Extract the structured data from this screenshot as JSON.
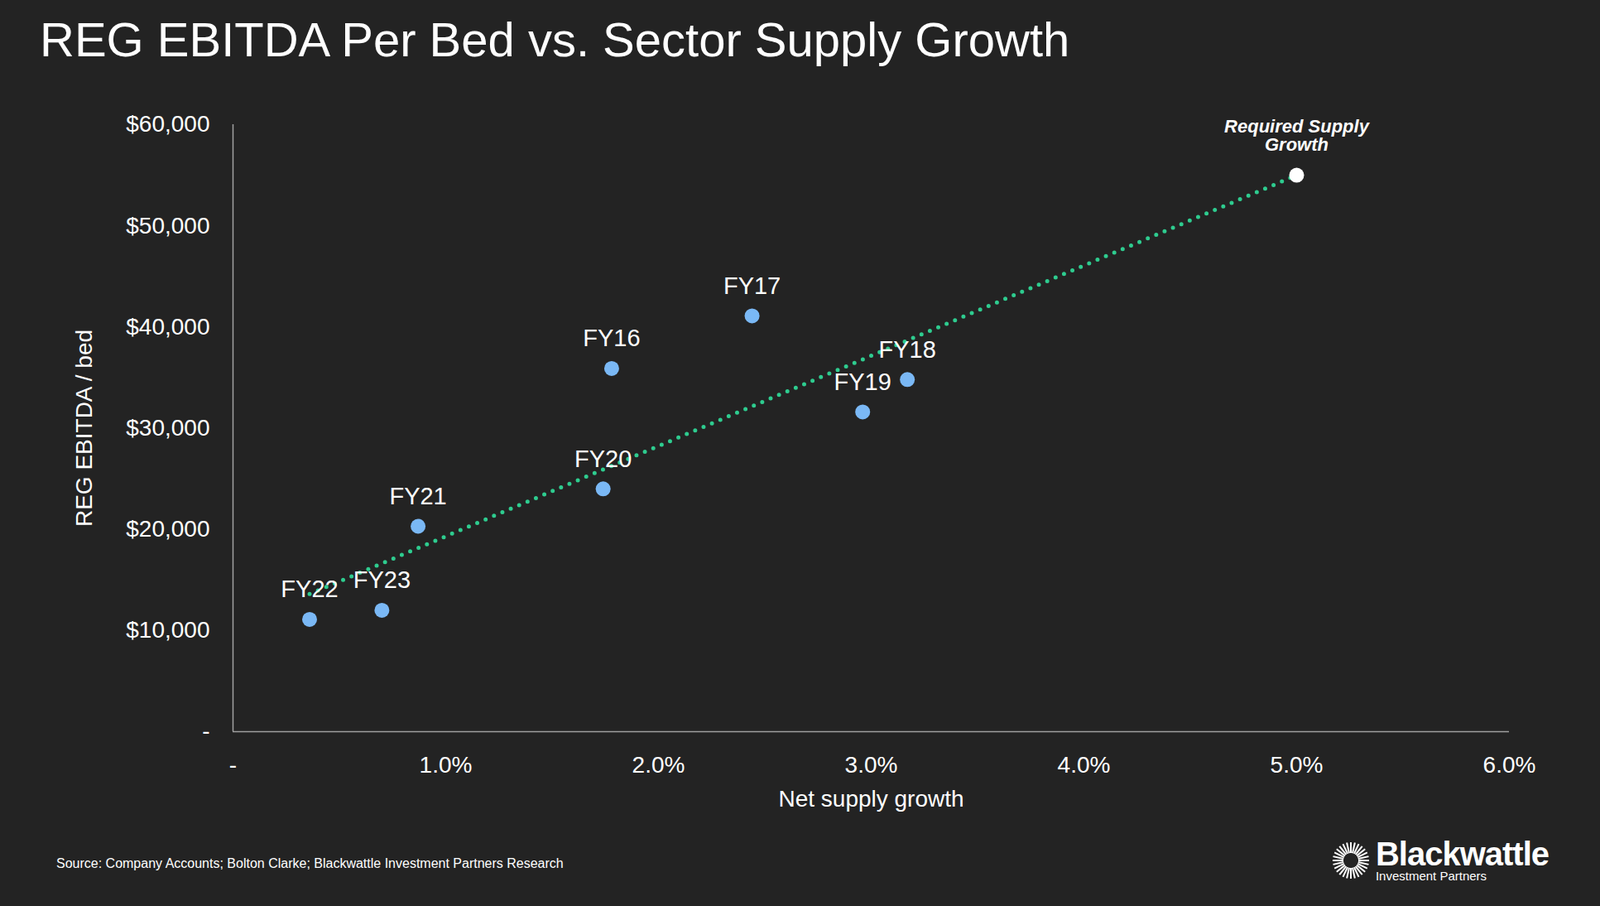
{
  "chart_data": {
    "type": "scatter",
    "title": "REG EBITDA Per Bed vs. Sector Supply Growth",
    "x_label": "Net supply growth",
    "y_label": "REG EBITDA / bed",
    "labels": [
      "FY16",
      "FY17",
      "FY18",
      "FY19",
      "FY20",
      "FY21",
      "FY22",
      "FY23"
    ],
    "x": [
      1.78,
      2.44,
      3.17,
      2.96,
      1.74,
      0.87,
      0.36,
      0.7
    ],
    "values": [
      35900,
      41100,
      34800,
      31600,
      24000,
      20300,
      11100,
      12000
    ],
    "color": "#7ab8f5",
    "marker": "circle",
    "trend_line": {
      "x": [
        0.36,
        5.0
      ],
      "values": [
        13600,
        55000
      ],
      "color": "#2ecc8f",
      "line_style": "dotted"
    },
    "annotation": {
      "text": "Required Supply Growth",
      "x": 5.0,
      "y": 55000,
      "color": "#ffffff"
    },
    "xlim": [
      0,
      6
    ],
    "xticks": [
      {
        "value": 0,
        "label": "-"
      },
      {
        "value": 1,
        "label": "1.0%"
      },
      {
        "value": 2,
        "label": "2.0%"
      },
      {
        "value": 3,
        "label": "3.0%"
      },
      {
        "value": 4,
        "label": "4.0%"
      },
      {
        "value": 5,
        "label": "5.0%"
      },
      {
        "value": 6,
        "label": "6.0%"
      }
    ],
    "ylim": [
      0,
      60000
    ],
    "yticks": [
      {
        "value": 0,
        "label": "-"
      },
      {
        "value": 10000,
        "label": "$10,000"
      },
      {
        "value": 20000,
        "label": "$20,000"
      },
      {
        "value": 30000,
        "label": "$30,000"
      },
      {
        "value": 40000,
        "label": "$40,000"
      },
      {
        "value": 50000,
        "label": "$50,000"
      },
      {
        "value": 60000,
        "label": "$60,000"
      }
    ],
    "grid": false,
    "source": "Source: Company Accounts; Bolton Clarke; Blackwattle Investment Partners Research",
    "logo": {
      "name": "Blackwattle",
      "subtitle": "Investment Partners"
    }
  }
}
